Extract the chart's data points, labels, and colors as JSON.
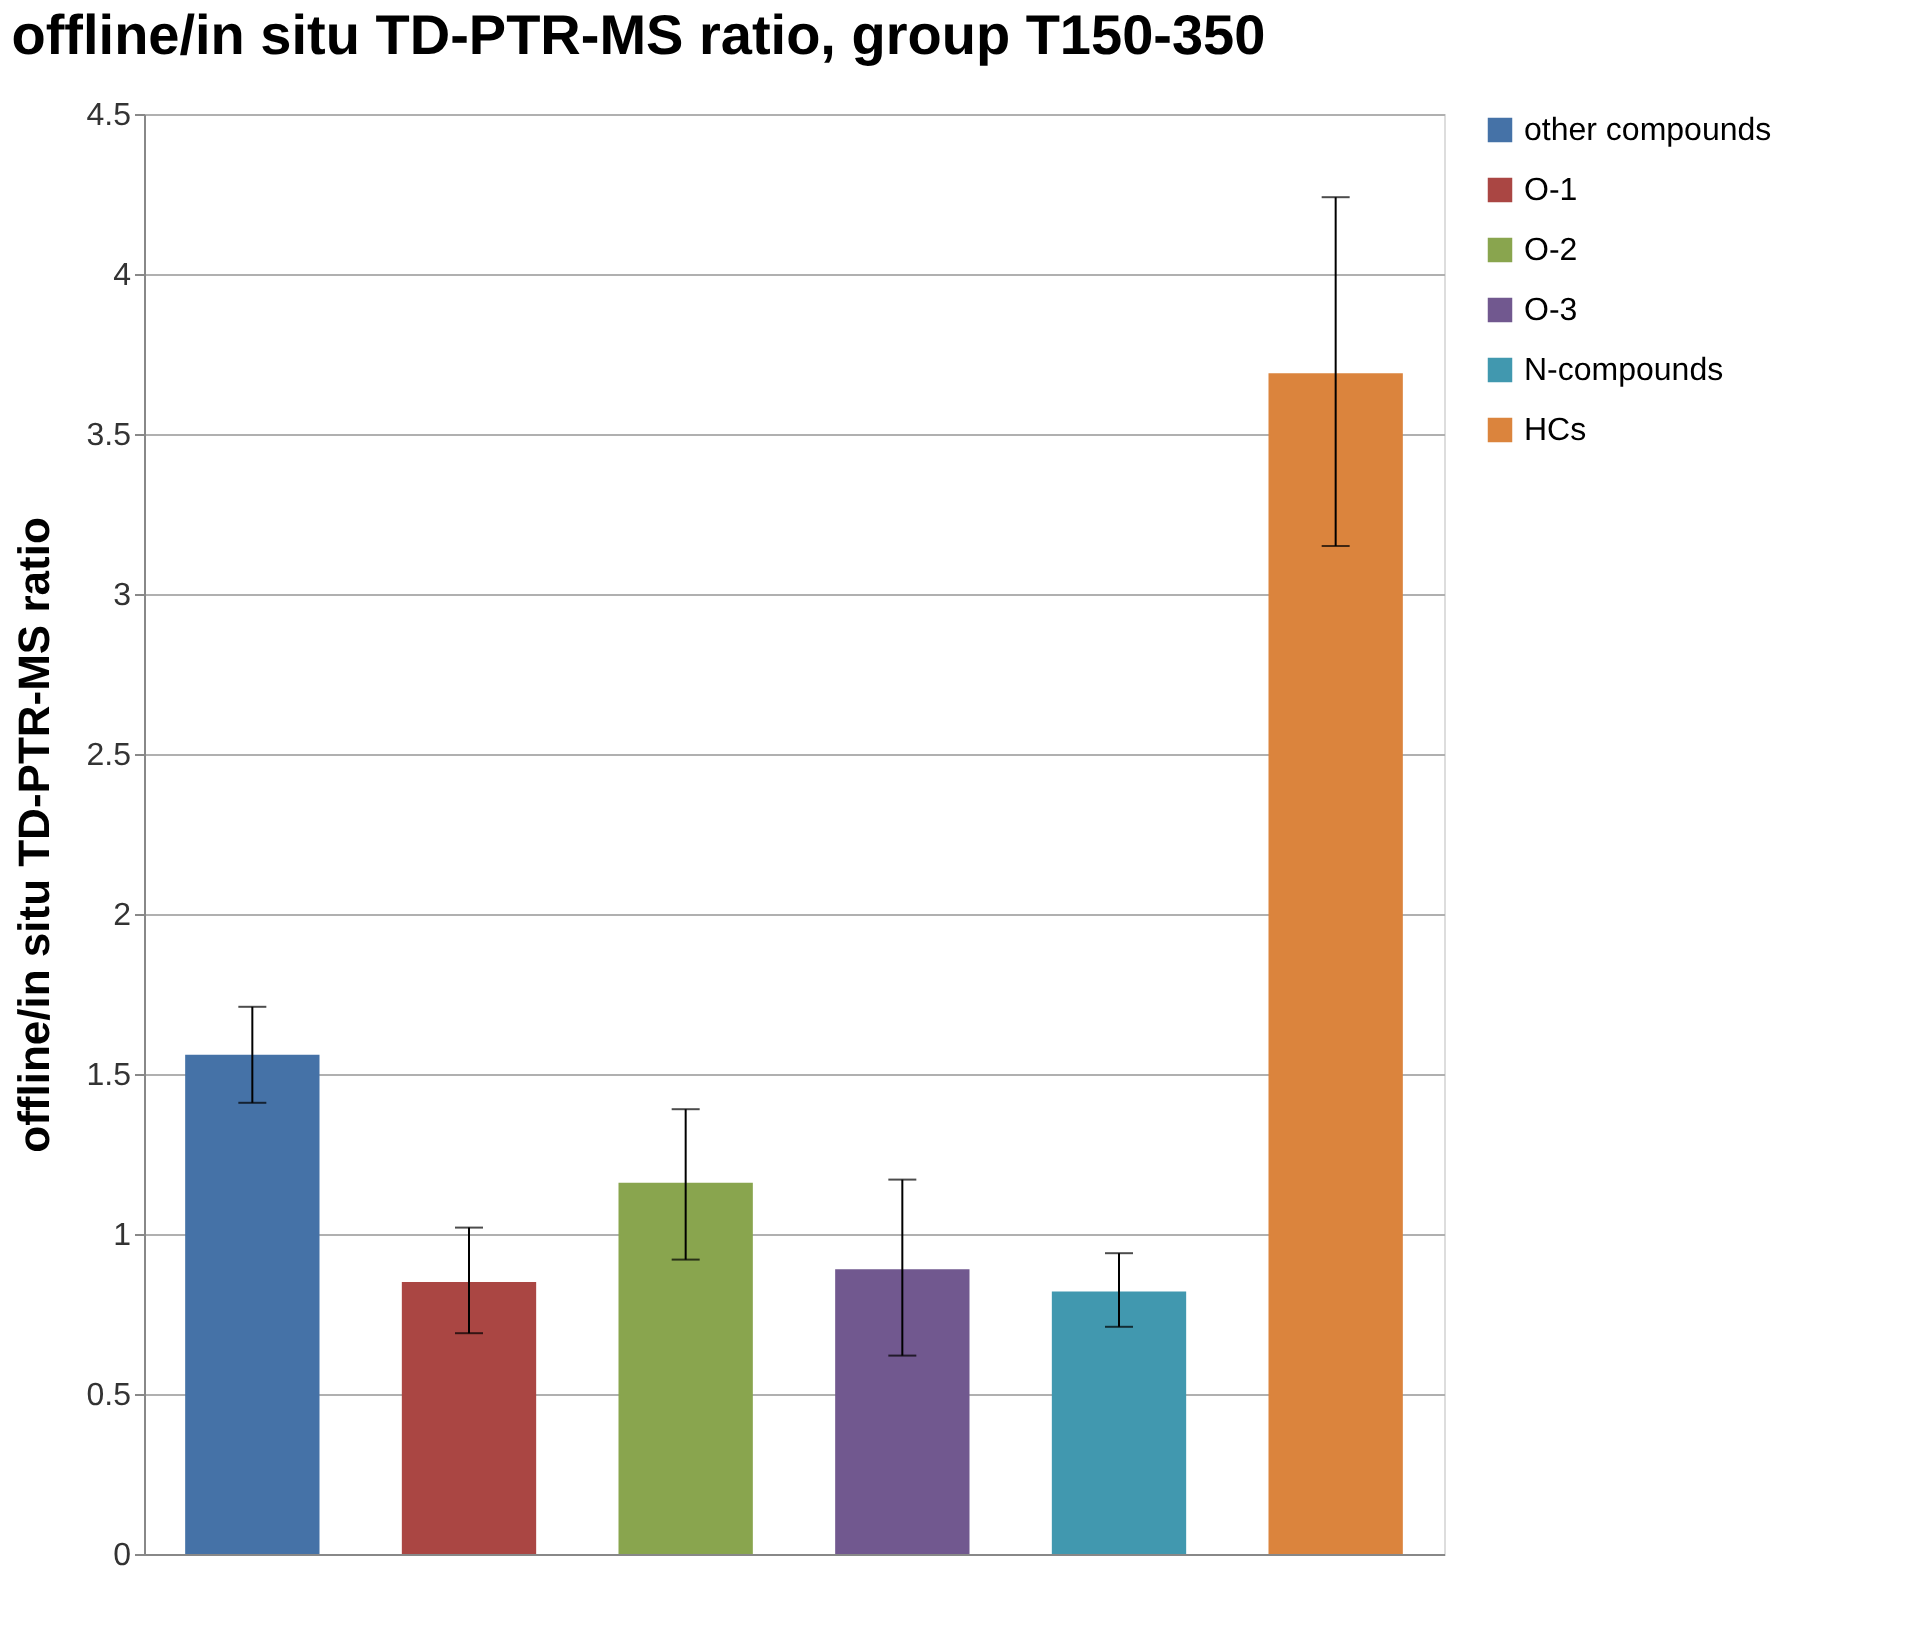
{
  "chart_data": {
    "type": "bar",
    "title": "offline/in situ TD-PTR-MS ratio, group T150-350",
    "ylabel": "offline/in situ TD-PTR-MS  ratio",
    "categories": [
      null,
      null,
      null,
      null,
      null,
      null
    ],
    "series": [
      {
        "name": "other compounds",
        "color": "#4572a7",
        "values": [
          1.56,
          null,
          null,
          null,
          null,
          null
        ],
        "errors": [
          [
            1.41,
            1.71
          ],
          null,
          null,
          null,
          null,
          null
        ]
      },
      {
        "name": "O-1",
        "color": "#aa4643",
        "values": [
          null,
          0.85,
          null,
          null,
          null,
          null
        ],
        "errors": [
          null,
          [
            0.69,
            1.02
          ],
          null,
          null,
          null,
          null
        ]
      },
      {
        "name": "O-2",
        "color": "#89a54e",
        "values": [
          null,
          null,
          1.16,
          null,
          null,
          null
        ],
        "errors": [
          null,
          null,
          [
            0.92,
            1.39
          ],
          null,
          null,
          null
        ]
      },
      {
        "name": "O-3",
        "color": "#71588f",
        "values": [
          null,
          null,
          null,
          0.89,
          null,
          null
        ],
        "errors": [
          null,
          null,
          null,
          [
            0.62,
            1.17
          ],
          null,
          null
        ]
      },
      {
        "name": "N-compounds",
        "color": "#4198af",
        "values": [
          null,
          null,
          null,
          null,
          0.82,
          null
        ],
        "errors": [
          null,
          null,
          null,
          null,
          [
            0.71,
            0.94
          ],
          null
        ]
      },
      {
        "name": "HCs",
        "color": "#db843d",
        "values": [
          null,
          null,
          null,
          null,
          null,
          3.69
        ],
        "errors": [
          null,
          null,
          null,
          null,
          null,
          [
            3.15,
            4.24
          ]
        ]
      }
    ],
    "ylim": [
      0,
      4.5
    ],
    "yticks": [
      0,
      0.5,
      1,
      1.5,
      2,
      2.5,
      3,
      3.5,
      4,
      4.5
    ],
    "grid": "y",
    "legend": "right",
    "tick_labels": "y"
  }
}
